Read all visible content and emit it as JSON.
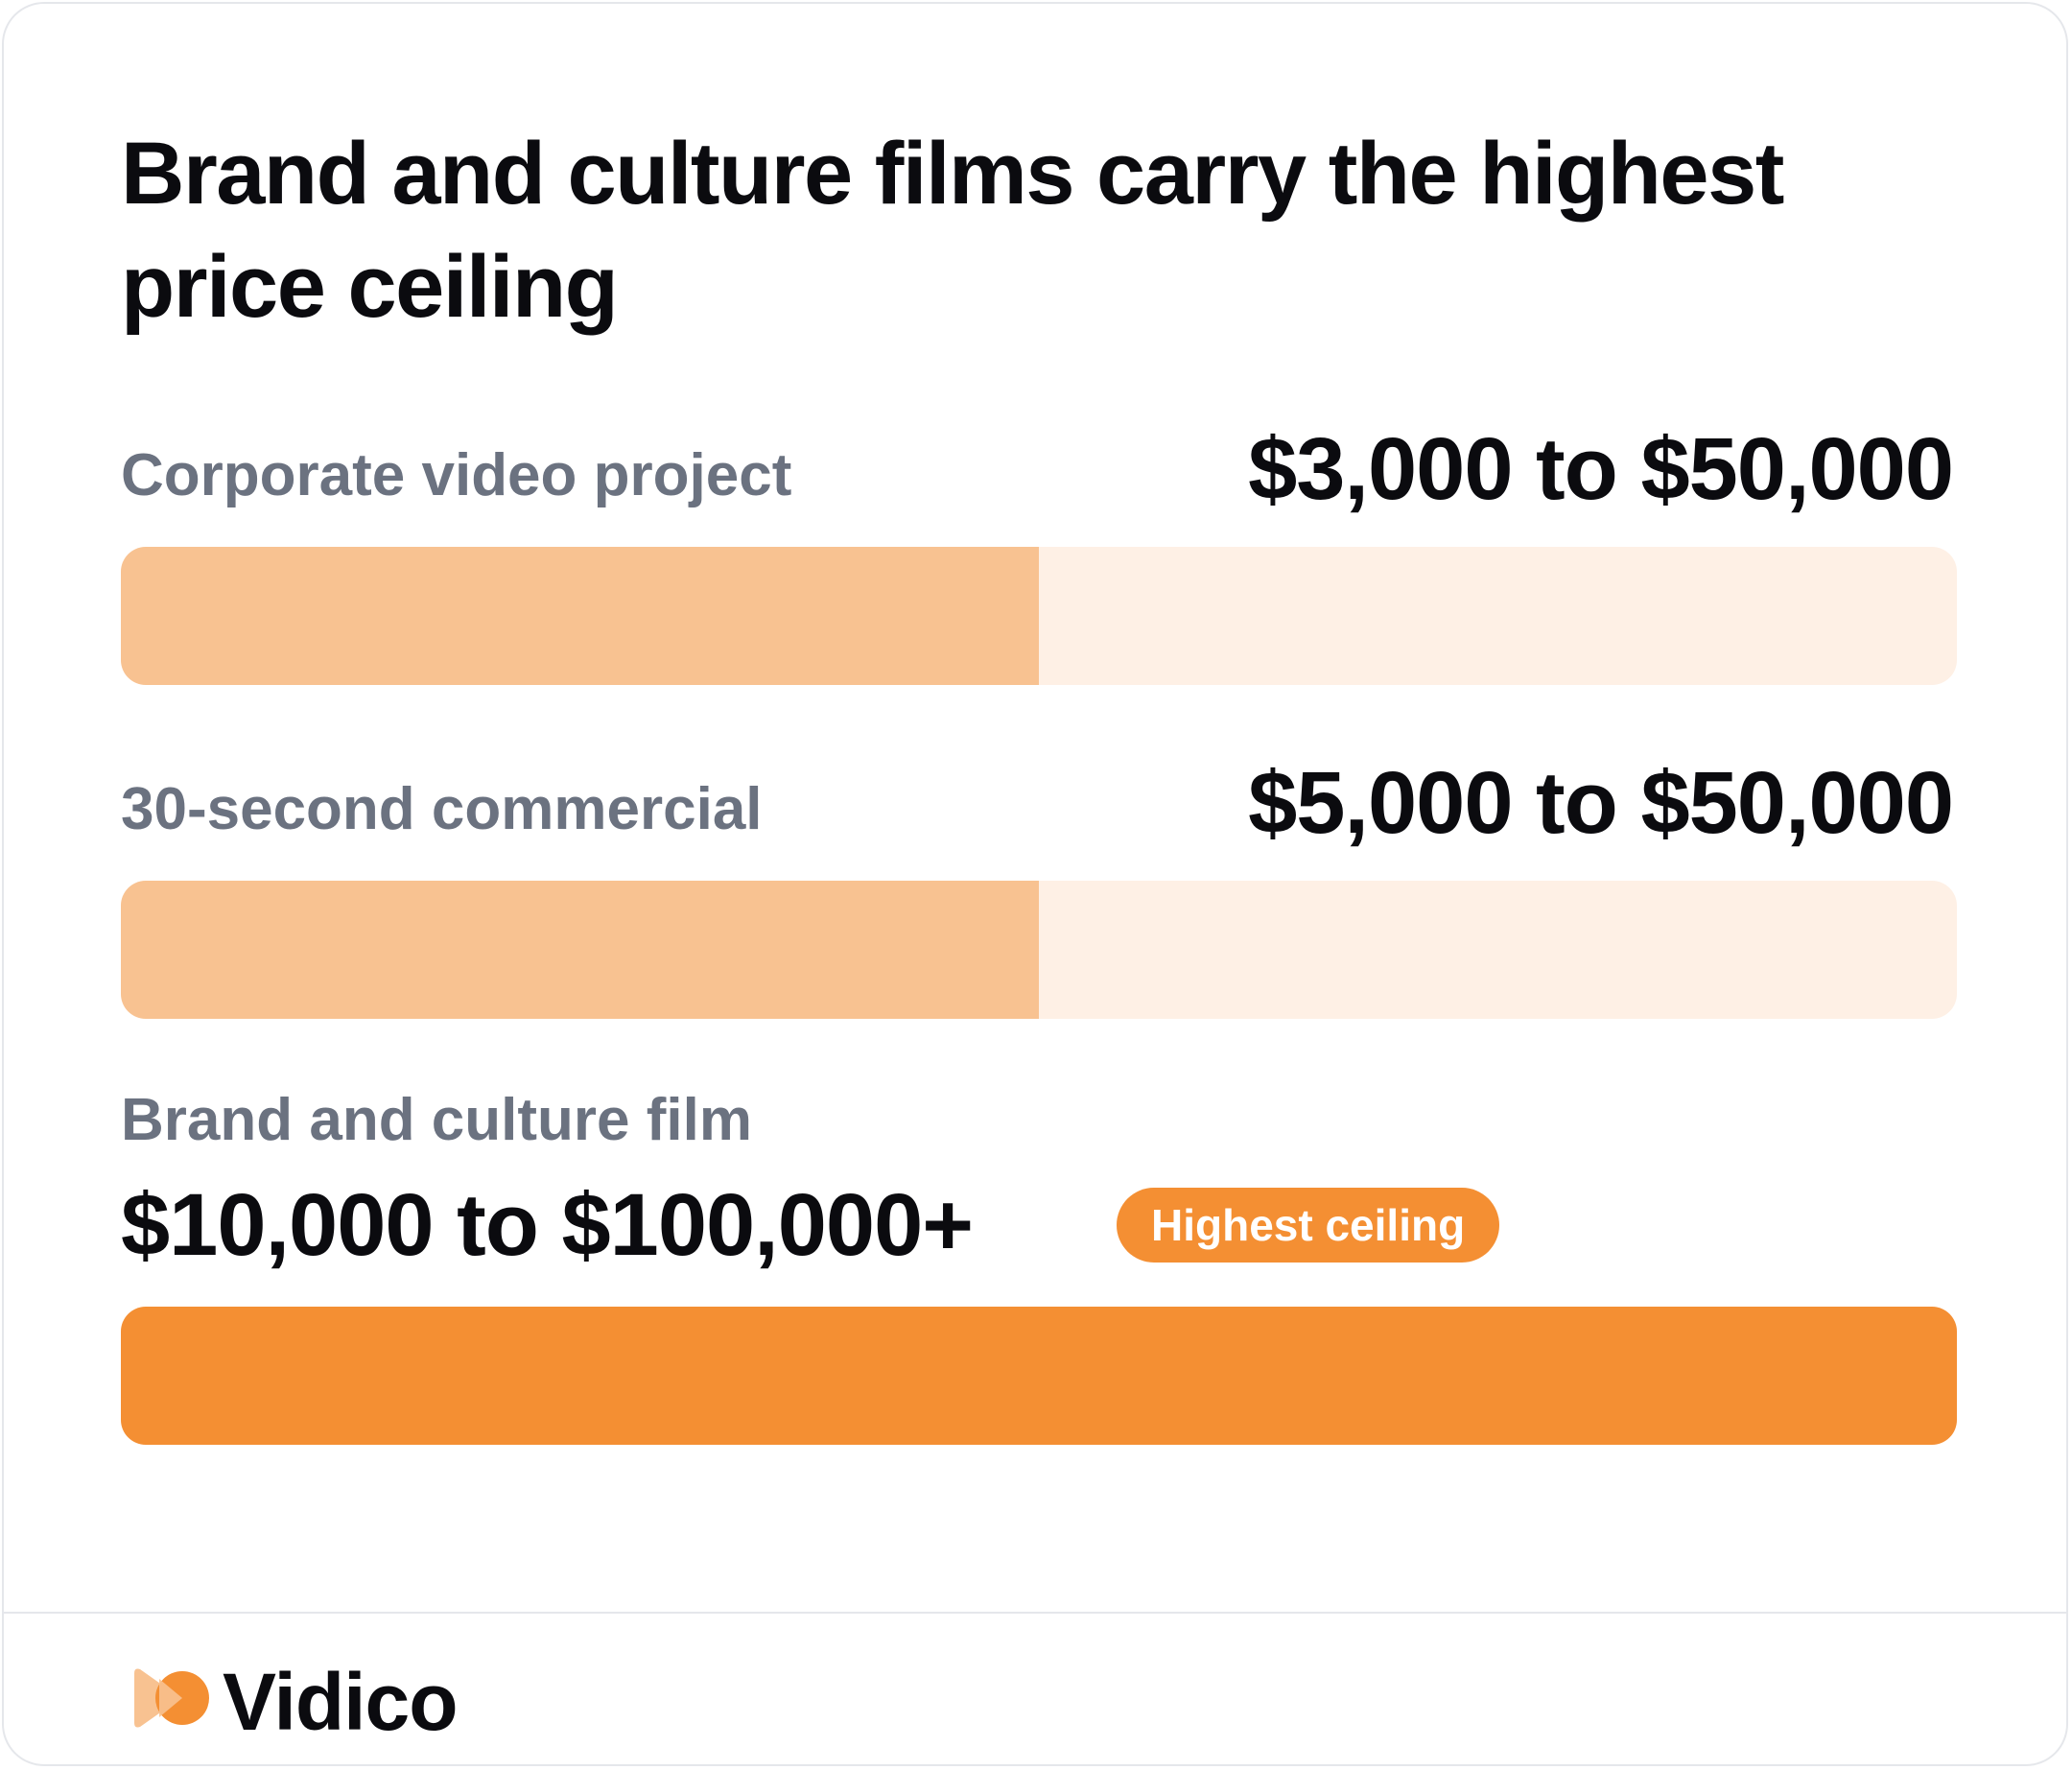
{
  "chart_data": {
    "type": "bar",
    "title": "Brand and culture films carry the highest price ceiling",
    "orientation": "horizontal",
    "categories": [
      "Corporate video project",
      "30-second commercial",
      "Brand and culture film"
    ],
    "series": [
      {
        "values": [
          50000,
          50000,
          100000
        ]
      }
    ],
    "ranges": [
      {
        "category": "Corporate video project",
        "low": 3000,
        "high": 50000,
        "label": "$3,000 to $50,000"
      },
      {
        "category": "30-second commercial",
        "low": 5000,
        "high": 50000,
        "label": "$5,000 to $50,000"
      },
      {
        "category": "Brand and culture film",
        "low": 10000,
        "high": 100000,
        "label": "$10,000 to $100,000+"
      }
    ],
    "xlim": [
      0,
      100000
    ],
    "grid": false,
    "annotations": [
      "Highest ceiling"
    ]
  },
  "rows": [
    {
      "label": "Corporate video project",
      "range": "$3,000 to $50,000",
      "ceiling": 50000,
      "fill_color": "#f8c291"
    },
    {
      "label": "30-second commercial",
      "range": "$5,000 to $50,000",
      "ceiling": 50000,
      "fill_color": "#f8c291"
    },
    {
      "label": "Brand and culture film",
      "range": "$10,000 to $100,000+",
      "ceiling": 100000,
      "fill_color": "#f48f33",
      "badge": "Highest ceiling"
    }
  ],
  "colors": {
    "track": "#fef0e5",
    "fill_light": "#f8c291",
    "fill_accent": "#f48f33",
    "label": "#6b7280",
    "text": "#0b0b0f"
  },
  "logo": {
    "name": "Vidico",
    "icon": "vidico-logo-icon"
  }
}
